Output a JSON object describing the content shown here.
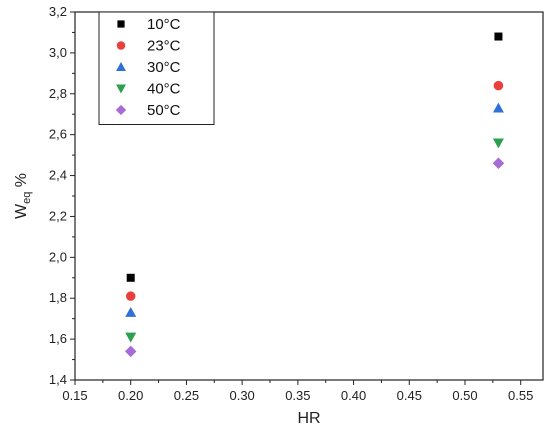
{
  "chart_data": {
    "type": "scatter",
    "xlabel": "HR",
    "ylabel": {
      "main": "W",
      "sub": "eq",
      "suffix": " %"
    },
    "xlim": [
      0.15,
      0.57
    ],
    "ylim": [
      1.4,
      3.2
    ],
    "xticks": [
      "0.15",
      "0.20",
      "0.25",
      "0.30",
      "0.35",
      "0.40",
      "0.45",
      "0.50",
      "0.55"
    ],
    "yticks": [
      "1,4",
      "1,6",
      "1,8",
      "2,0",
      "2,2",
      "2,4",
      "2,6",
      "2,8",
      "3,0",
      "3,2"
    ],
    "legend_placement": "top-left",
    "series": [
      {
        "name": "10°C",
        "marker": "square",
        "color": "#000000",
        "x": [
          0.2,
          0.53
        ],
        "y": [
          1.9,
          3.08
        ]
      },
      {
        "name": "23°C",
        "marker": "circle",
        "color": "#e8403a",
        "x": [
          0.2,
          0.53
        ],
        "y": [
          1.81,
          2.84
        ]
      },
      {
        "name": "30°C",
        "marker": "triangle-up",
        "color": "#2f6fd6",
        "x": [
          0.2,
          0.53
        ],
        "y": [
          1.73,
          2.73
        ]
      },
      {
        "name": "40°C",
        "marker": "triangle-down",
        "color": "#2e9e4f",
        "x": [
          0.2,
          0.53
        ],
        "y": [
          1.61,
          2.56
        ]
      },
      {
        "name": "50°C",
        "marker": "diamond",
        "color": "#a66bd6",
        "x": [
          0.2,
          0.53
        ],
        "y": [
          1.54,
          2.46
        ]
      }
    ]
  }
}
